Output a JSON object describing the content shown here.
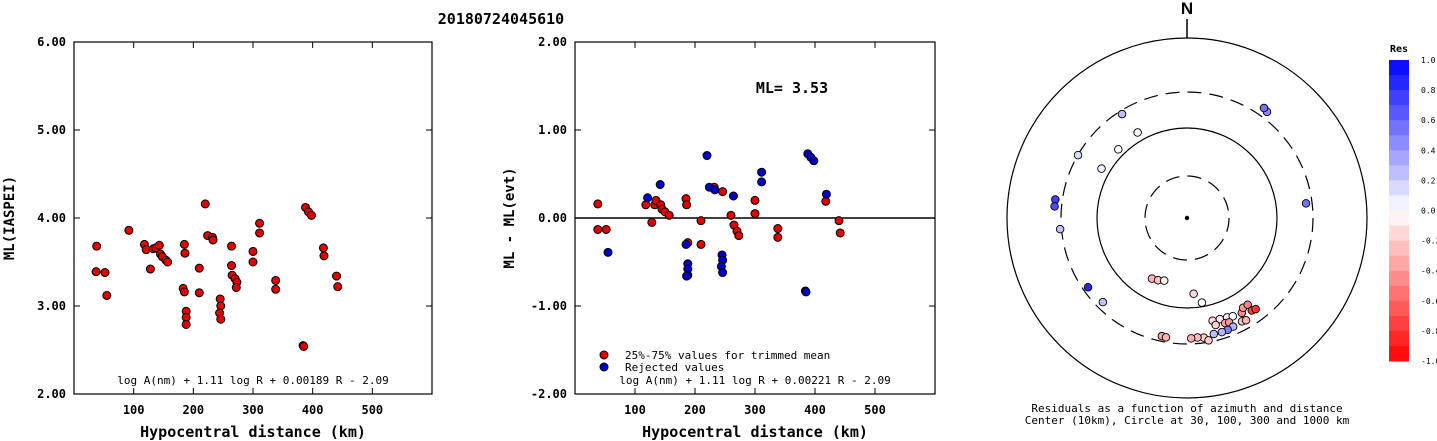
{
  "title": "20180724045610",
  "chart_data": [
    {
      "type": "scatter",
      "xlabel": "Hypocentral distance (km)",
      "ylabel": "ML(IASPEI)",
      "xlim": [
        0,
        600
      ],
      "ylim": [
        2.0,
        6.0
      ],
      "xticks": [
        "100",
        "200",
        "300",
        "400",
        "500"
      ],
      "yticks": [
        "2.00",
        "3.00",
        "4.00",
        "5.00",
        "6.00"
      ],
      "formula": "log A(nm) + 1.11 log R + 0.00189 R - 2.09",
      "series": [
        {
          "color": "#e00000",
          "points": [
            [
              38,
              3.68
            ],
            [
              37,
              3.39
            ],
            [
              52,
              3.38
            ],
            [
              55,
              3.12
            ],
            [
              92,
              3.86
            ],
            [
              118,
              3.7
            ],
            [
              121,
              3.64
            ],
            [
              128,
              3.42
            ],
            [
              133,
              3.65
            ],
            [
              137,
              3.66
            ],
            [
              143,
              3.69
            ],
            [
              145,
              3.59
            ],
            [
              148,
              3.56
            ],
            [
              154,
              3.52
            ],
            [
              157,
              3.5
            ],
            [
              185,
              3.7
            ],
            [
              186,
              3.6
            ],
            [
              183,
              3.2
            ],
            [
              185,
              3.16
            ],
            [
              188,
              2.94
            ],
            [
              188,
              2.87
            ],
            [
              188,
              2.79
            ],
            [
              210,
              3.43
            ],
            [
              210,
              3.15
            ],
            [
              220,
              4.16
            ],
            [
              224,
              3.8
            ],
            [
              232,
              3.78
            ],
            [
              233,
              3.75
            ],
            [
              245,
              3.08
            ],
            [
              246,
              3.0
            ],
            [
              244,
              2.92
            ],
            [
              246,
              2.85
            ],
            [
              264,
              3.68
            ],
            [
              264,
              3.46
            ],
            [
              265,
              3.35
            ],
            [
              270,
              3.31
            ],
            [
              273,
              3.27
            ],
            [
              272,
              3.21
            ],
            [
              300,
              3.62
            ],
            [
              300,
              3.5
            ],
            [
              311,
              3.94
            ],
            [
              311,
              3.83
            ],
            [
              338,
              3.29
            ],
            [
              338,
              3.19
            ],
            [
              384,
              2.55
            ],
            [
              385,
              2.54
            ],
            [
              388,
              4.12
            ],
            [
              393,
              4.07
            ],
            [
              398,
              4.03
            ],
            [
              418,
              3.66
            ],
            [
              419,
              3.57
            ],
            [
              440,
              3.34
            ],
            [
              442,
              3.22
            ]
          ]
        }
      ]
    },
    {
      "type": "scatter",
      "xlabel": "Hypocentral distance (km)",
      "ylabel": "ML - ML(evt)",
      "xlim": [
        0,
        600
      ],
      "ylim": [
        -2.0,
        2.0
      ],
      "xticks": [
        "100",
        "200",
        "300",
        "400",
        "500"
      ],
      "yticks": [
        "-2.00",
        "-1.00",
        "0.00",
        "1.00",
        "2.00"
      ],
      "annotation": "ML=  3.53",
      "formula": "log A(nm) + 1.11 log R + 0.00221 R - 2.09",
      "series": [
        {
          "name": "25%-75% values for trimmed mean",
          "color": "#e00000",
          "points": [
            [
              38,
              0.16
            ],
            [
              38,
              -0.13
            ],
            [
              52,
              -0.13
            ],
            [
              118,
              0.15
            ],
            [
              128,
              -0.05
            ],
            [
              133,
              0.15
            ],
            [
              135,
              0.2
            ],
            [
              143,
              0.15
            ],
            [
              145,
              0.1
            ],
            [
              150,
              0.07
            ],
            [
              157,
              0.03
            ],
            [
              185,
              0.22
            ],
            [
              186,
              0.15
            ],
            [
              188,
              -0.28
            ],
            [
              210,
              -0.03
            ],
            [
              210,
              -0.3
            ],
            [
              232,
              0.35
            ],
            [
              246,
              0.3
            ],
            [
              260,
              0.03
            ],
            [
              265,
              -0.08
            ],
            [
              270,
              -0.15
            ],
            [
              273,
              -0.2
            ],
            [
              300,
              0.2
            ],
            [
              300,
              0.05
            ],
            [
              338,
              -0.12
            ],
            [
              338,
              -0.22
            ],
            [
              418,
              0.19
            ],
            [
              440,
              -0.03
            ],
            [
              442,
              -0.17
            ]
          ]
        },
        {
          "name": "Rejected values",
          "color": "#0000c8",
          "points": [
            [
              55,
              -0.39
            ],
            [
              121,
              0.23
            ],
            [
              142,
              0.38
            ],
            [
              185,
              -0.3
            ],
            [
              188,
              -0.52
            ],
            [
              188,
              -0.58
            ],
            [
              188,
              -0.65
            ],
            [
              186,
              -0.66
            ],
            [
              220,
              0.71
            ],
            [
              224,
              0.35
            ],
            [
              233,
              0.32
            ],
            [
              245,
              -0.42
            ],
            [
              246,
              -0.48
            ],
            [
              244,
              -0.55
            ],
            [
              246,
              -0.62
            ],
            [
              264,
              0.25
            ],
            [
              311,
              0.52
            ],
            [
              311,
              0.41
            ],
            [
              384,
              -0.83
            ],
            [
              385,
              -0.84
            ],
            [
              388,
              0.73
            ],
            [
              393,
              0.69
            ],
            [
              398,
              0.65
            ],
            [
              419,
              0.27
            ]
          ]
        }
      ]
    },
    {
      "type": "polar_scatter",
      "north_label": "N",
      "caption_line1": "Residuals as a function of azimuth and distance",
      "caption_line2": "Center (10km), Circle at 30, 100, 300 and 1000 km",
      "rings_km": [
        30,
        100,
        300,
        1000
      ],
      "colorbar_title": "Res",
      "colorbar_ticks": [
        "1.0",
        "0.8",
        "0.6",
        "0.4",
        "0.2",
        "0.0",
        "-0.2",
        "-0.4",
        "-0.6",
        "-0.8",
        "-1.0"
      ],
      "points_az_dist_res": [
        [
          315,
          120,
          0.0
        ],
        [
          300,
          125,
          0.05
        ],
        [
          330,
          125,
          -0.05
        ],
        [
          210,
          60,
          -0.3
        ],
        [
          205,
          58,
          -0.25
        ],
        [
          200,
          55,
          -0.05
        ],
        [
          170,
          90,
          0.0
        ],
        [
          175,
          70,
          -0.15
        ],
        [
          166,
          150,
          -0.15
        ],
        [
          162,
          152,
          -0.1
        ],
        [
          158,
          155,
          0.05
        ],
        [
          155,
          160,
          0.0
        ],
        [
          165,
          170,
          -0.2
        ],
        [
          160,
          175,
          -0.35
        ],
        [
          158,
          178,
          -0.4
        ],
        [
          150,
          165,
          -0.45
        ],
        [
          148,
          150,
          -0.4
        ],
        [
          145,
          150,
          -0.5
        ],
        [
          152,
          200,
          -0.25
        ],
        [
          150,
          205,
          -0.3
        ],
        [
          157,
          205,
          0.3
        ],
        [
          160,
          210,
          0.5
        ],
        [
          163,
          212,
          0.3
        ],
        [
          167,
          210,
          0.25
        ],
        [
          172,
          220,
          -0.2
        ],
        [
          175,
          215,
          -0.25
        ],
        [
          178,
          218,
          -0.3
        ],
        [
          170,
          240,
          -0.2
        ],
        [
          192,
          220,
          -0.35
        ],
        [
          190,
          222,
          -0.3
        ],
        [
          145,
          180,
          -0.75
        ],
        [
          143,
          185,
          -0.8
        ],
        [
          128,
          0,
          0
        ],
        [
          37,
          300,
          0.45
        ],
        [
          35,
          310,
          0.55
        ],
        [
          328,
          230,
          0.25
        ],
        [
          300,
          250,
          0.15
        ],
        [
          278,
          300,
          0.75
        ],
        [
          275,
          300,
          0.7
        ],
        [
          265,
          260,
          0.25
        ],
        [
          83,
          215,
          0.55
        ],
        [
          235,
          220,
          0.85
        ],
        [
          225,
          210,
          0.25
        ]
      ]
    }
  ]
}
